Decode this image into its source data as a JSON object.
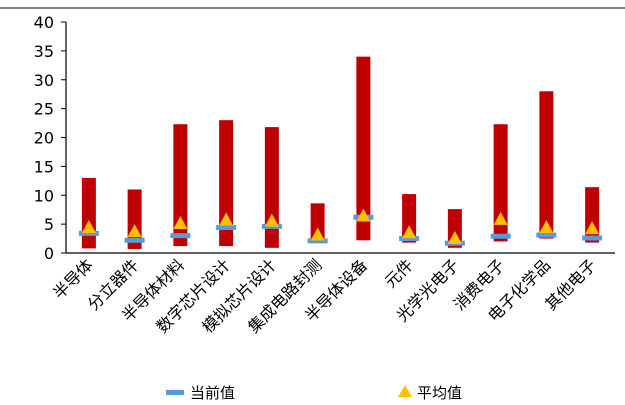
{
  "chart_data": {
    "type": "bar",
    "categories": [
      "半导体",
      "分立器件",
      "半导体材料",
      "数字芯片设计",
      "模拟芯片设计",
      "集成电路封测",
      "半导体设备",
      "元件",
      "光学光电子",
      "消费电子",
      "电子化学品",
      "其他电子"
    ],
    "series": [
      {
        "name": "",
        "kind": "range",
        "low": [
          0.8,
          0.7,
          1.2,
          1.2,
          0.9,
          2.0,
          2.2,
          1.8,
          0.9,
          2.0,
          2.5,
          1.8
        ],
        "high": [
          13.0,
          11.0,
          22.3,
          23.0,
          21.8,
          8.6,
          34.0,
          10.2,
          7.6,
          22.3,
          28.0,
          11.4
        ]
      },
      {
        "name": "当前值",
        "kind": "marker-dash",
        "values": [
          3.4,
          2.2,
          3.0,
          4.4,
          4.6,
          2.1,
          6.2,
          2.5,
          1.7,
          2.9,
          3.1,
          2.6
        ]
      },
      {
        "name": "平均值",
        "kind": "marker-triangle",
        "values": [
          4.5,
          3.8,
          5.2,
          5.8,
          5.6,
          3.2,
          6.5,
          3.6,
          2.6,
          5.9,
          4.5,
          4.3
        ]
      }
    ],
    "yticks": [
      "0",
      "5",
      "10",
      "15",
      "20",
      "25",
      "30",
      "35",
      "40"
    ],
    "ylim": [
      0,
      40
    ],
    "grid": false,
    "legend": "bottom",
    "colors": {
      "range": "#c00000",
      "current": "#5b9bd5",
      "average": "#ffc000"
    }
  }
}
